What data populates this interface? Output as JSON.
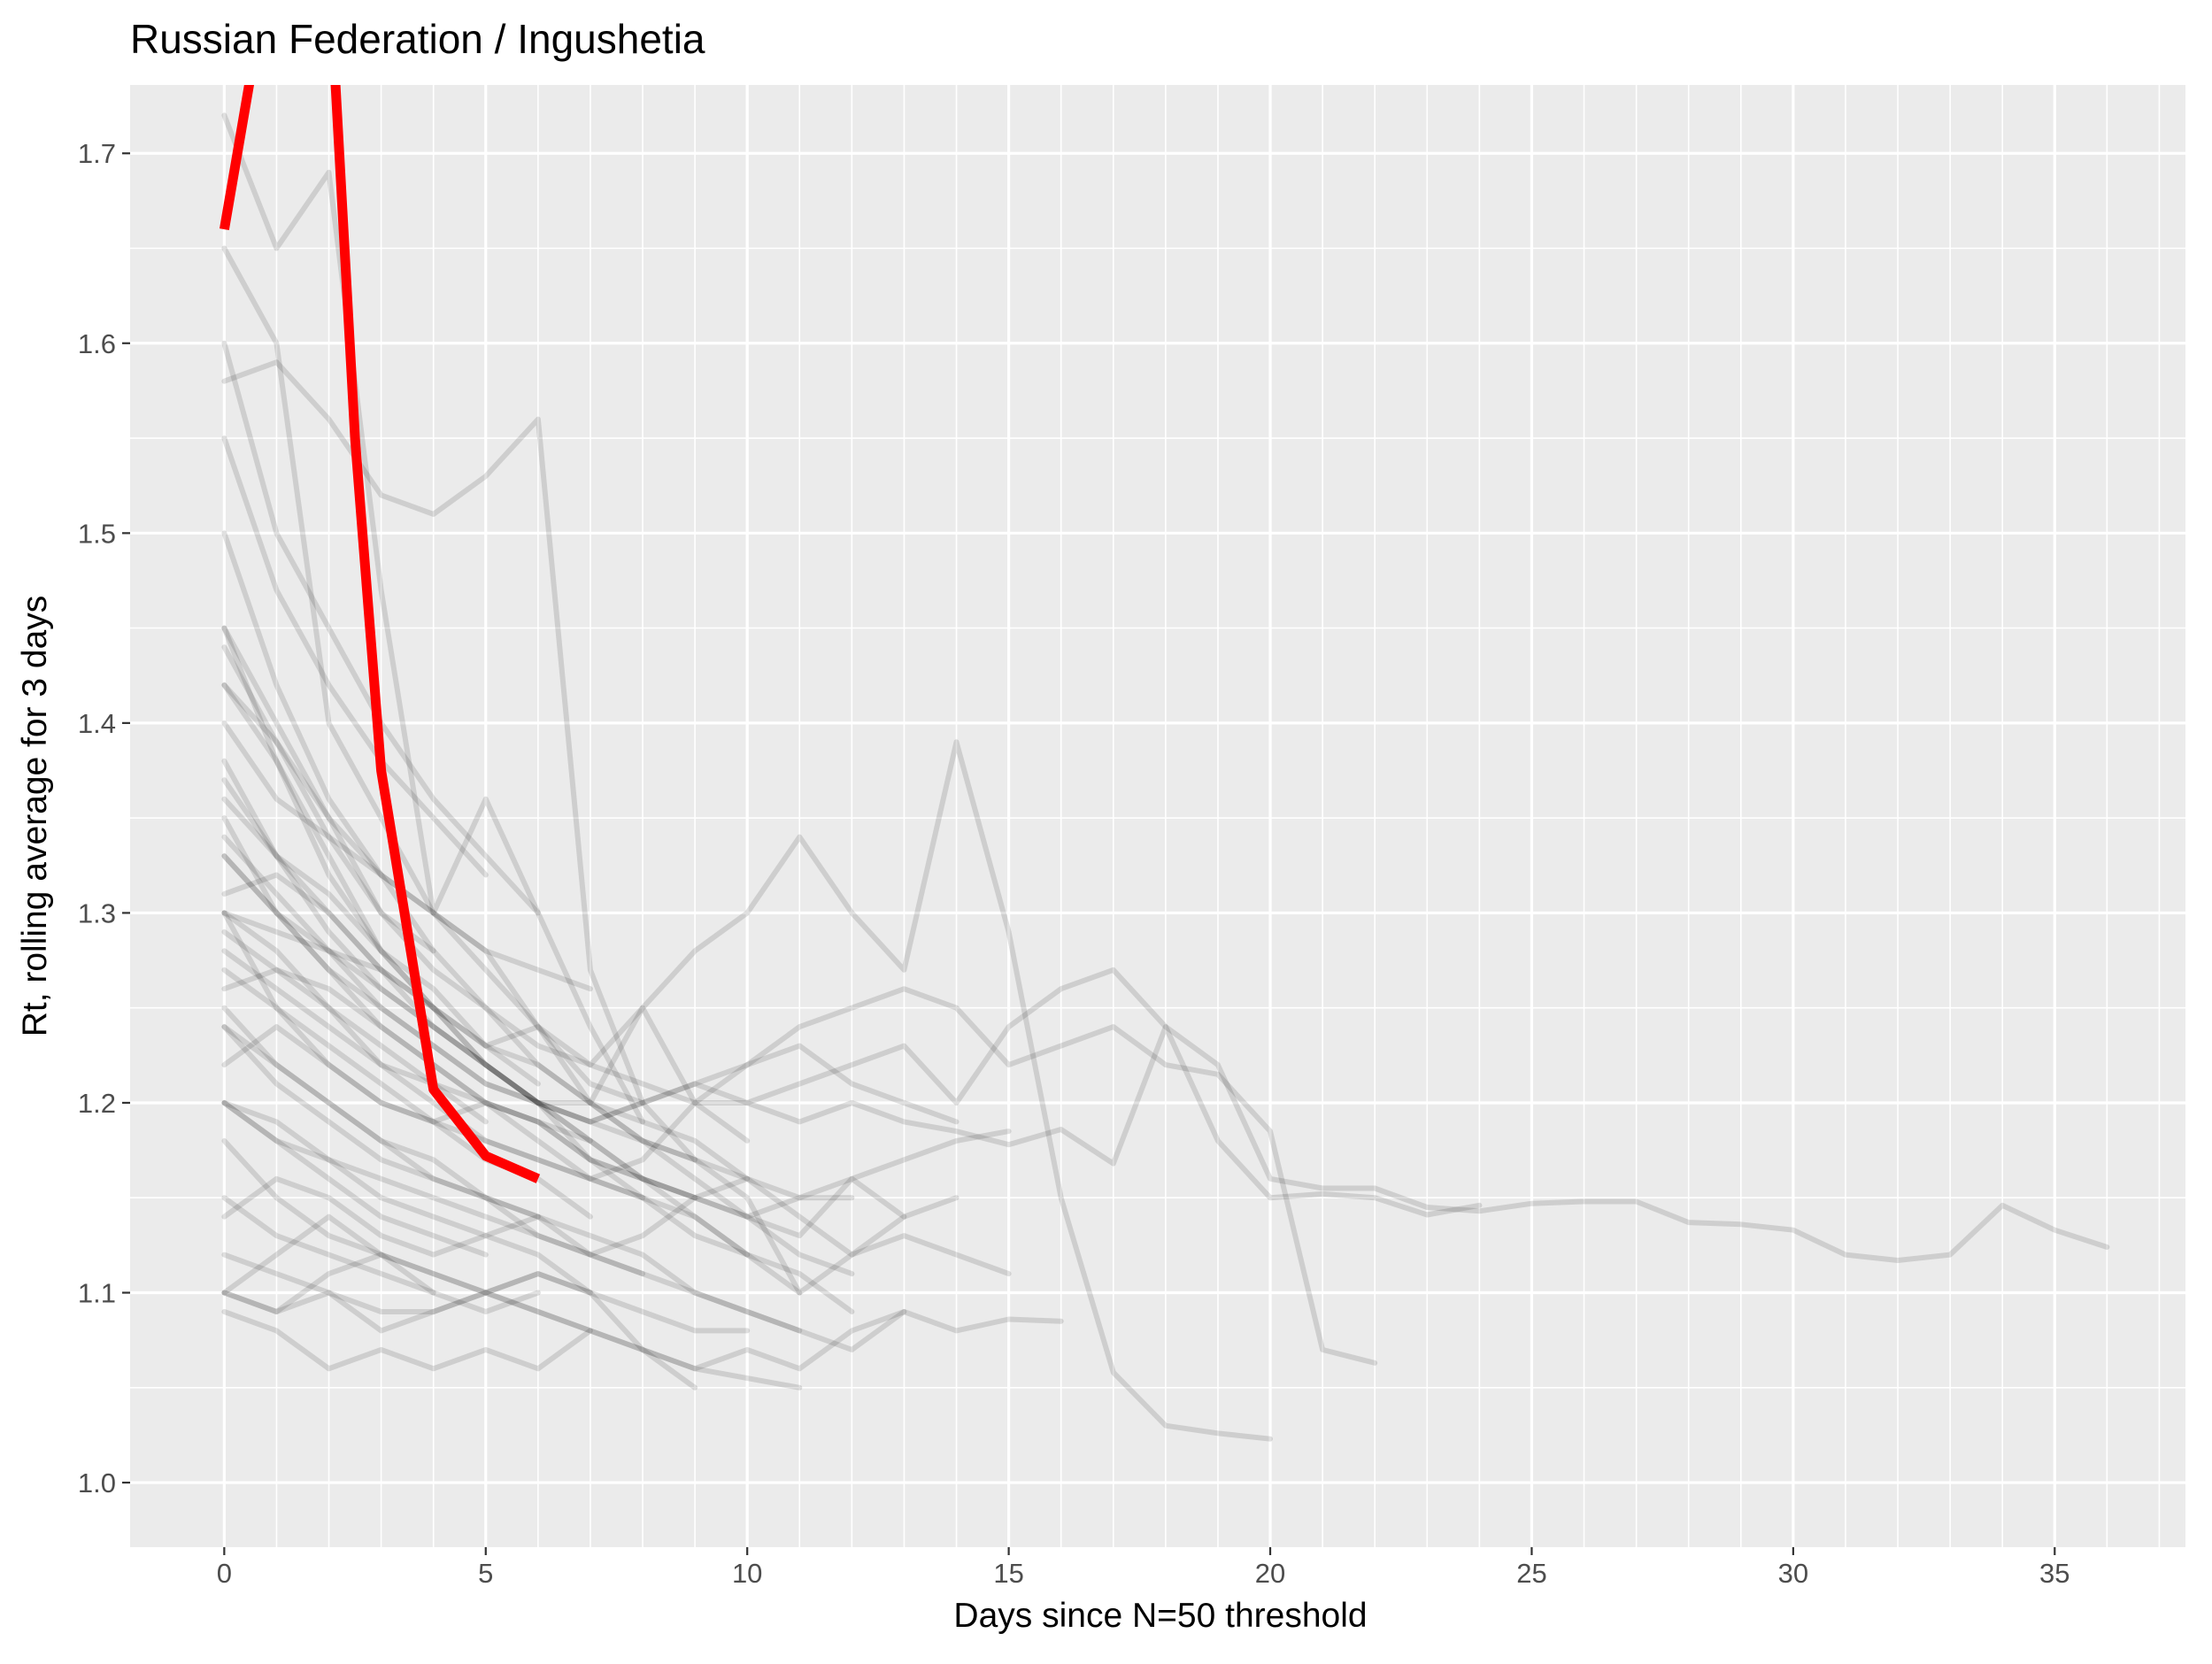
{
  "chart_data": {
    "type": "line",
    "title": "Russian Federation / Ingushetia",
    "xlabel": "Days since N=50 threshold",
    "ylabel": "Rt, rolling average for 3 days",
    "xlim": [
      -1.8,
      37.5
    ],
    "ylim": [
      0.966,
      1.736
    ],
    "x_ticks": [
      0,
      5,
      10,
      15,
      20,
      25,
      30,
      35
    ],
    "x_tick_labels": [
      "0",
      "5",
      "10",
      "15",
      "20",
      "25",
      "30",
      "35"
    ],
    "y_ticks": [
      1.0,
      1.1,
      1.2,
      1.3,
      1.4,
      1.5,
      1.6,
      1.7
    ],
    "y_tick_labels": [
      "1.0",
      "1.1",
      "1.2",
      "1.3",
      "1.4",
      "1.5",
      "1.6",
      "1.7"
    ],
    "grid": true,
    "legend": "none",
    "colors": {
      "panel": "#ebebeb",
      "grid": "#ffffff",
      "background_series": "#000000",
      "highlight": "#ff0000"
    },
    "highlight_series": {
      "name": "Ingushetia",
      "x": [
        0,
        0.5,
        1,
        2,
        2.5,
        3,
        4,
        5,
        6
      ],
      "y": [
        1.66,
        1.74,
        1.9,
        1.8,
        1.55,
        1.375,
        1.207,
        1.172,
        1.16
      ]
    },
    "background_series": [
      {
        "x": [
          0,
          1,
          2,
          3,
          4,
          5,
          6,
          7,
          8,
          9,
          10,
          11,
          12,
          13,
          14,
          15,
          16,
          17,
          18,
          19,
          20,
          21,
          22,
          23,
          24,
          25,
          26,
          27,
          28,
          29,
          30,
          31,
          32,
          33,
          34,
          35,
          36
        ],
        "y": [
          1.45,
          1.4,
          1.35,
          1.3,
          1.28,
          1.25,
          1.23,
          1.22,
          1.21,
          1.2,
          1.2,
          1.21,
          1.22,
          1.23,
          1.2,
          1.24,
          1.26,
          1.27,
          1.24,
          1.22,
          1.16,
          1.155,
          1.155,
          1.145,
          1.143,
          1.147,
          1.148,
          1.148,
          1.137,
          1.136,
          1.133,
          1.12,
          1.117,
          1.12,
          1.146,
          1.133,
          1.124
        ]
      },
      {
        "x": [
          0,
          1,
          2,
          3,
          4,
          5,
          6,
          7,
          8,
          9,
          10,
          11,
          12,
          13,
          14,
          15,
          16,
          17,
          18,
          19,
          20
        ],
        "y": [
          1.35,
          1.3,
          1.28,
          1.26,
          1.24,
          1.22,
          1.2,
          1.2,
          1.25,
          1.28,
          1.3,
          1.34,
          1.3,
          1.27,
          1.39,
          1.29,
          1.15,
          1.058,
          1.03,
          1.026,
          1.023
        ]
      },
      {
        "x": [
          0,
          1,
          2,
          3,
          4,
          5,
          6,
          7,
          8,
          9,
          10,
          11,
          12,
          13,
          14,
          15,
          16,
          17,
          18,
          19,
          20,
          21,
          22
        ],
        "y": [
          1.3,
          1.28,
          1.25,
          1.22,
          1.2,
          1.18,
          1.17,
          1.16,
          1.17,
          1.2,
          1.22,
          1.24,
          1.25,
          1.26,
          1.25,
          1.22,
          1.23,
          1.24,
          1.22,
          1.215,
          1.185,
          1.07,
          1.063
        ]
      },
      {
        "x": [
          0,
          1,
          2,
          3,
          4,
          5,
          6,
          7,
          8,
          9,
          10,
          11,
          12,
          13,
          14,
          15,
          16,
          17,
          18,
          19,
          20,
          21,
          22,
          23,
          24
        ],
        "y": [
          1.33,
          1.3,
          1.27,
          1.25,
          1.23,
          1.21,
          1.2,
          1.19,
          1.2,
          1.21,
          1.2,
          1.19,
          1.2,
          1.19,
          1.185,
          1.178,
          1.186,
          1.168,
          1.24,
          1.18,
          1.15,
          1.152,
          1.15,
          1.141,
          1.146
        ]
      },
      {
        "x": [
          0,
          1,
          2,
          3,
          4,
          5,
          6,
          7,
          8,
          9,
          10,
          11,
          12,
          13,
          14,
          15,
          16
        ],
        "y": [
          1.25,
          1.22,
          1.2,
          1.18,
          1.16,
          1.15,
          1.14,
          1.13,
          1.12,
          1.1,
          1.09,
          1.08,
          1.07,
          1.09,
          1.08,
          1.086,
          1.085
        ]
      },
      {
        "x": [
          0,
          1,
          2,
          3,
          4,
          5,
          6,
          7,
          8,
          9,
          10,
          11,
          12,
          13,
          14,
          15
        ],
        "y": [
          1.2,
          1.18,
          1.17,
          1.16,
          1.15,
          1.14,
          1.13,
          1.12,
          1.13,
          1.15,
          1.16,
          1.14,
          1.12,
          1.13,
          1.12,
          1.11
        ]
      },
      {
        "x": [
          0,
          1,
          2,
          3,
          4,
          5,
          6,
          7,
          8,
          9,
          10,
          11,
          12,
          13,
          14,
          15
        ],
        "y": [
          1.28,
          1.26,
          1.24,
          1.22,
          1.21,
          1.2,
          1.19,
          1.17,
          1.16,
          1.15,
          1.14,
          1.13,
          1.16,
          1.17,
          1.18,
          1.185
        ]
      },
      {
        "x": [
          0,
          1,
          2,
          3,
          4,
          5,
          6,
          7,
          8,
          9,
          10,
          11,
          12,
          13,
          14
        ],
        "y": [
          1.38,
          1.33,
          1.29,
          1.26,
          1.24,
          1.22,
          1.2,
          1.18,
          1.16,
          1.15,
          1.14,
          1.15,
          1.16,
          1.14,
          1.15
        ]
      },
      {
        "x": [
          0,
          1,
          2,
          3,
          4,
          5,
          6,
          7,
          8,
          9,
          10,
          11,
          12,
          13
        ],
        "y": [
          1.58,
          1.59,
          1.56,
          1.52,
          1.51,
          1.53,
          1.56,
          1.27,
          1.2,
          1.17,
          1.15,
          1.1,
          1.12,
          1.14
        ]
      },
      {
        "x": [
          0,
          1,
          2,
          3,
          4,
          5,
          6,
          7,
          8,
          9,
          10,
          11,
          12,
          13
        ],
        "y": [
          1.1,
          1.09,
          1.1,
          1.08,
          1.09,
          1.1,
          1.11,
          1.1,
          1.07,
          1.06,
          1.07,
          1.06,
          1.08,
          1.09
        ]
      },
      {
        "x": [
          0,
          1,
          2,
          3,
          4,
          5,
          6,
          7,
          8,
          9,
          10,
          11,
          12
        ],
        "y": [
          1.65,
          1.6,
          1.4,
          1.35,
          1.3,
          1.28,
          1.24,
          1.2,
          1.18,
          1.16,
          1.14,
          1.12,
          1.11
        ]
      },
      {
        "x": [
          0,
          1,
          2,
          3,
          4,
          5,
          6,
          7,
          8,
          9,
          10,
          11,
          12
        ],
        "y": [
          1.3,
          1.25,
          1.22,
          1.2,
          1.19,
          1.18,
          1.17,
          1.16,
          1.15,
          1.14,
          1.12,
          1.11,
          1.09
        ]
      },
      {
        "x": [
          0,
          1,
          2,
          3,
          4,
          5,
          6,
          7,
          8,
          9,
          10,
          11
        ],
        "y": [
          1.42,
          1.38,
          1.33,
          1.28,
          1.25,
          1.22,
          1.2,
          1.17,
          1.15,
          1.13,
          1.12,
          1.1
        ]
      },
      {
        "x": [
          0,
          1,
          2,
          3,
          4,
          5,
          6,
          7,
          8,
          9,
          10,
          11
        ],
        "y": [
          1.24,
          1.21,
          1.19,
          1.17,
          1.16,
          1.15,
          1.13,
          1.12,
          1.11,
          1.1,
          1.09,
          1.08
        ]
      },
      {
        "x": [
          0,
          1,
          2,
          3,
          4,
          5,
          6,
          7,
          8,
          9,
          10,
          11
        ],
        "y": [
          1.18,
          1.15,
          1.13,
          1.12,
          1.11,
          1.1,
          1.09,
          1.08,
          1.07,
          1.06,
          1.055,
          1.05
        ]
      },
      {
        "x": [
          0,
          1,
          2,
          3,
          4,
          5,
          6,
          7,
          8,
          9,
          10
        ],
        "y": [
          1.37,
          1.33,
          1.3,
          1.27,
          1.24,
          1.22,
          1.2,
          1.18,
          1.16,
          1.14,
          1.12
        ]
      },
      {
        "x": [
          0,
          1,
          2,
          3,
          4,
          5,
          6,
          7,
          8,
          9,
          10
        ],
        "y": [
          1.3,
          1.29,
          1.28,
          1.27,
          1.25,
          1.23,
          1.22,
          1.2,
          1.19,
          1.18,
          1.16
        ]
      },
      {
        "x": [
          0,
          1,
          2,
          3,
          4,
          5,
          6,
          7,
          8,
          9,
          10
        ],
        "y": [
          1.12,
          1.11,
          1.1,
          1.09,
          1.09,
          1.1,
          1.11,
          1.1,
          1.09,
          1.08,
          1.08
        ]
      },
      {
        "x": [
          0,
          1,
          2,
          3,
          4,
          5,
          6,
          7,
          8,
          9
        ],
        "y": [
          1.45,
          1.38,
          1.32,
          1.28,
          1.25,
          1.22,
          1.2,
          1.19,
          1.18,
          1.17
        ]
      },
      {
        "x": [
          0,
          1,
          2,
          3,
          4,
          5,
          6,
          7,
          8,
          9
        ],
        "y": [
          1.26,
          1.27,
          1.26,
          1.24,
          1.22,
          1.2,
          1.19,
          1.17,
          1.16,
          1.15
        ]
      },
      {
        "x": [
          0,
          1,
          2,
          3,
          4,
          5,
          6,
          7,
          8,
          9
        ],
        "y": [
          1.09,
          1.08,
          1.06,
          1.07,
          1.06,
          1.07,
          1.06,
          1.08,
          1.07,
          1.05
        ]
      },
      {
        "x": [
          0,
          1,
          2,
          3,
          4,
          5,
          6,
          7,
          8
        ],
        "y": [
          1.72,
          1.65,
          1.69,
          1.47,
          1.3,
          1.36,
          1.3,
          1.24,
          1.19
        ]
      },
      {
        "x": [
          0,
          1,
          2,
          3,
          4,
          5,
          6,
          7,
          8
        ],
        "y": [
          1.4,
          1.36,
          1.34,
          1.32,
          1.3,
          1.27,
          1.24,
          1.21,
          1.2
        ]
      },
      {
        "x": [
          0,
          1,
          2,
          3,
          4,
          5,
          6,
          7,
          8
        ],
        "y": [
          1.22,
          1.24,
          1.22,
          1.2,
          1.19,
          1.2,
          1.18,
          1.16,
          1.15
        ]
      },
      {
        "x": [
          0,
          1,
          2,
          3,
          4,
          5,
          6,
          7,
          8
        ],
        "y": [
          1.14,
          1.16,
          1.15,
          1.13,
          1.12,
          1.13,
          1.14,
          1.12,
          1.11
        ]
      },
      {
        "x": [
          0,
          1,
          2,
          3,
          4,
          5,
          6,
          7
        ],
        "y": [
          1.5,
          1.42,
          1.36,
          1.32,
          1.3,
          1.28,
          1.27,
          1.26
        ]
      },
      {
        "x": [
          0,
          1,
          2,
          3,
          4,
          5,
          6,
          7
        ],
        "y": [
          1.33,
          1.3,
          1.27,
          1.24,
          1.22,
          1.2,
          1.19,
          1.18
        ]
      },
      {
        "x": [
          0,
          1,
          2,
          3,
          4,
          5,
          6,
          7
        ],
        "y": [
          1.27,
          1.25,
          1.23,
          1.21,
          1.19,
          1.17,
          1.16,
          1.14
        ]
      },
      {
        "x": [
          0,
          1,
          2,
          3,
          4,
          5,
          6,
          7
        ],
        "y": [
          1.2,
          1.19,
          1.17,
          1.15,
          1.14,
          1.13,
          1.12,
          1.1
        ]
      },
      {
        "x": [
          0,
          1,
          2,
          3,
          4,
          5,
          6,
          7
        ],
        "y": [
          1.1,
          1.12,
          1.14,
          1.12,
          1.11,
          1.1,
          1.09,
          1.08
        ]
      },
      {
        "x": [
          0,
          1,
          2,
          3,
          4,
          5,
          6
        ],
        "y": [
          1.6,
          1.5,
          1.45,
          1.4,
          1.36,
          1.33,
          1.3
        ]
      },
      {
        "x": [
          0,
          1,
          2,
          3,
          4,
          5,
          6
        ],
        "y": [
          1.36,
          1.33,
          1.31,
          1.28,
          1.26,
          1.23,
          1.21
        ]
      },
      {
        "x": [
          0,
          1,
          2,
          3,
          4,
          5,
          6
        ],
        "y": [
          1.24,
          1.22,
          1.2,
          1.18,
          1.17,
          1.15,
          1.14
        ]
      },
      {
        "x": [
          0,
          1,
          2,
          3,
          4,
          5,
          6
        ],
        "y": [
          1.15,
          1.13,
          1.12,
          1.11,
          1.1,
          1.09,
          1.1
        ]
      },
      {
        "x": [
          0,
          1,
          2,
          3,
          4,
          5
        ],
        "y": [
          1.55,
          1.47,
          1.42,
          1.38,
          1.35,
          1.32
        ]
      },
      {
        "x": [
          0,
          1,
          2,
          3,
          4,
          5
        ],
        "y": [
          1.29,
          1.27,
          1.25,
          1.23,
          1.21,
          1.19
        ]
      },
      {
        "x": [
          0,
          1,
          2,
          3,
          4,
          5
        ],
        "y": [
          1.2,
          1.18,
          1.16,
          1.14,
          1.13,
          1.12
        ]
      },
      {
        "x": [
          0,
          1,
          2,
          3,
          4
        ],
        "y": [
          1.42,
          1.39,
          1.35,
          1.32,
          1.28
        ]
      },
      {
        "x": [
          0,
          1,
          2,
          3,
          4
        ],
        "y": [
          1.1,
          1.09,
          1.11,
          1.12,
          1.1
        ]
      },
      {
        "x": [
          0,
          1,
          2,
          3,
          4,
          5,
          6,
          7,
          8,
          9,
          10,
          11,
          12,
          13,
          14
        ],
        "y": [
          1.34,
          1.31,
          1.28,
          1.25,
          1.23,
          1.21,
          1.2,
          1.19,
          1.2,
          1.21,
          1.22,
          1.23,
          1.21,
          1.2,
          1.19
        ]
      },
      {
        "x": [
          0,
          1,
          2,
          3,
          4,
          5,
          6,
          7,
          8,
          9,
          10
        ],
        "y": [
          1.31,
          1.32,
          1.3,
          1.27,
          1.25,
          1.23,
          1.24,
          1.22,
          1.25,
          1.2,
          1.18
        ]
      },
      {
        "x": [
          0,
          1,
          2,
          3,
          4,
          5,
          6,
          7,
          8,
          9,
          10,
          11,
          12
        ],
        "y": [
          1.44,
          1.39,
          1.34,
          1.3,
          1.27,
          1.25,
          1.22,
          1.2,
          1.18,
          1.17,
          1.16,
          1.15,
          1.15
        ]
      }
    ]
  }
}
